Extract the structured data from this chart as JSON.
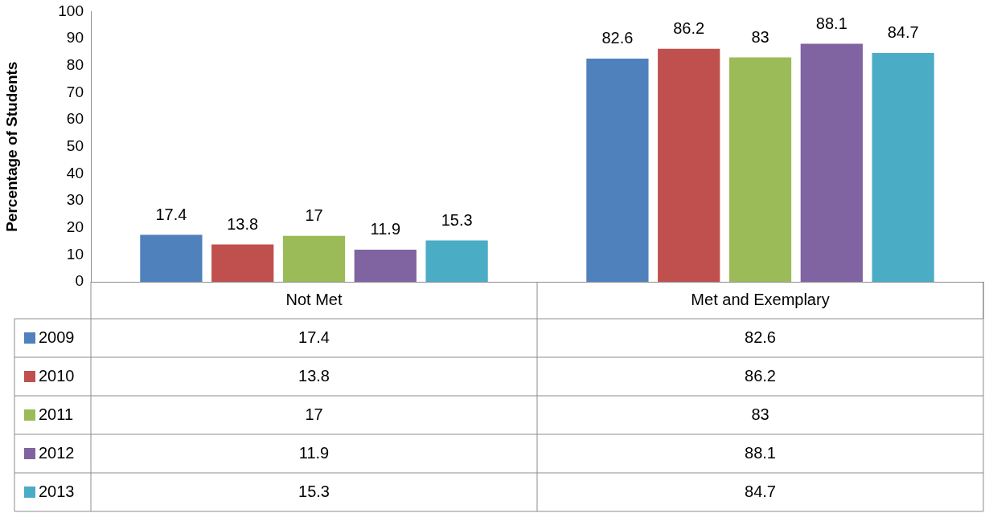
{
  "chart_data": {
    "type": "bar",
    "ylabel": "Percentage of Students",
    "categories": [
      "Not Met",
      "Met and Exemplary"
    ],
    "series": [
      {
        "name": "2009",
        "color": "#4f81bd",
        "values": [
          17.4,
          82.6
        ],
        "value_labels": [
          "17.4",
          "82.6"
        ]
      },
      {
        "name": "2010",
        "color": "#c0504d",
        "values": [
          13.8,
          86.2
        ],
        "value_labels": [
          "13.8",
          "86.2"
        ]
      },
      {
        "name": "2011",
        "color": "#9bbb59",
        "values": [
          17,
          83
        ],
        "value_labels": [
          "17",
          "83"
        ]
      },
      {
        "name": "2012",
        "color": "#8064a2",
        "values": [
          11.9,
          88.1
        ],
        "value_labels": [
          "11.9",
          "88.1"
        ]
      },
      {
        "name": "2013",
        "color": "#4bacc6",
        "values": [
          15.3,
          84.7
        ],
        "value_labels": [
          "15.3",
          "84.7"
        ]
      }
    ],
    "annotations": [
      "17.4",
      "82.6",
      "13.8",
      "86.2",
      "17",
      "83",
      "11.9",
      "88.1",
      "15.3",
      "84.7"
    ],
    "ylim": [
      0,
      100
    ],
    "yticks": [
      0,
      10,
      20,
      30,
      40,
      50,
      60,
      70,
      80,
      90,
      100
    ],
    "grid": false,
    "data_labels": true,
    "legend": "bottom"
  }
}
